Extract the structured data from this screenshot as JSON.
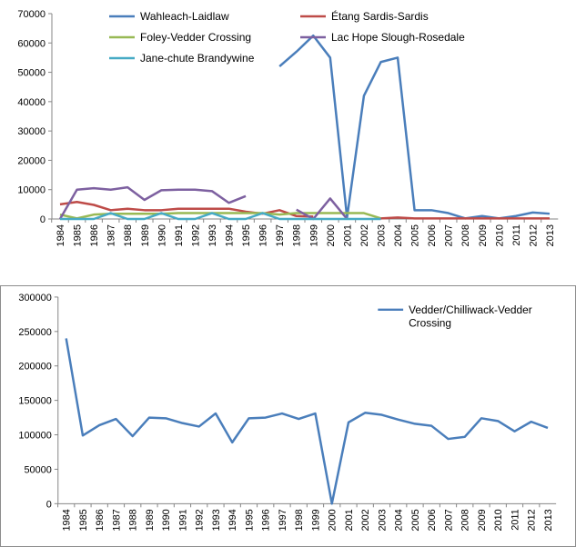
{
  "chart_data": [
    {
      "type": "line",
      "title": "",
      "xlabel": "",
      "ylabel": "",
      "ylim": [
        0,
        70000
      ],
      "yticks": [
        0,
        10000,
        20000,
        30000,
        40000,
        50000,
        60000,
        70000
      ],
      "legend_position": "top",
      "categories": [
        "1984",
        "1985",
        "1986",
        "1987",
        "1988",
        "1989",
        "1990",
        "1991",
        "1992",
        "1993",
        "1994",
        "1995",
        "1996",
        "1997",
        "1998",
        "1999",
        "2000",
        "2001",
        "2002",
        "2003",
        "2004",
        "2005",
        "2006",
        "2007",
        "2008",
        "2009",
        "2010",
        "2011",
        "2012",
        "2013"
      ],
      "series": [
        {
          "name": "Wahleach-Laidlaw",
          "color": "#4a7ebb",
          "values": [
            null,
            null,
            null,
            null,
            null,
            null,
            null,
            null,
            null,
            null,
            null,
            null,
            null,
            52000,
            57000,
            62500,
            55000,
            500,
            42000,
            53500,
            55000,
            3000,
            3000,
            2000,
            200,
            1000,
            200,
            1000,
            2200,
            1800
          ]
        },
        {
          "name": "Étang Sardis-Sardis",
          "color": "#be4b48",
          "values": [
            5000,
            5800,
            4800,
            3000,
            3500,
            3000,
            3000,
            3500,
            3500,
            3500,
            3500,
            2500,
            1800,
            3000,
            1000,
            800,
            null,
            null,
            null,
            200,
            500,
            200,
            200,
            200,
            200,
            200,
            200,
            200,
            200,
            200
          ]
        },
        {
          "name": "Foley-Vedder Crossing",
          "color": "#98b954",
          "values": [
            1500,
            200,
            1500,
            1800,
            1800,
            1800,
            1800,
            2000,
            2000,
            2000,
            2000,
            2000,
            2000,
            1500,
            2000,
            2000,
            2000,
            2000,
            2000,
            200,
            null,
            null,
            null,
            null,
            null,
            null,
            null,
            null,
            null,
            null
          ]
        },
        {
          "name": "Lac Hope Slough-Rosedale",
          "color": "#7d60a0",
          "values": [
            0,
            10000,
            10500,
            10000,
            10800,
            6500,
            9800,
            10000,
            10000,
            9500,
            5500,
            7800,
            null,
            null,
            3200,
            0,
            7000,
            0,
            null,
            null,
            null,
            null,
            null,
            null,
            null,
            null,
            null,
            null,
            null,
            null
          ]
        },
        {
          "name": "Jane-chute Brandywine",
          "color": "#46aac5",
          "values": [
            0,
            0,
            0,
            2000,
            0,
            0,
            2000,
            0,
            0,
            2000,
            0,
            0,
            2000,
            0,
            0,
            0,
            0,
            0,
            0,
            0,
            null,
            null,
            null,
            null,
            null,
            null,
            null,
            null,
            null,
            null
          ]
        }
      ]
    },
    {
      "type": "line",
      "title": "",
      "xlabel": "",
      "ylabel": "",
      "ylim": [
        0,
        300000
      ],
      "yticks": [
        0,
        50000,
        100000,
        150000,
        200000,
        250000,
        300000
      ],
      "legend_position": "top-right",
      "categories": [
        "1984",
        "1985",
        "1986",
        "1987",
        "1988",
        "1989",
        "1990",
        "1991",
        "1992",
        "1993",
        "1994",
        "1995",
        "1996",
        "1997",
        "1998",
        "1999",
        "2000",
        "2001",
        "2002",
        "2003",
        "2004",
        "2005",
        "2006",
        "2007",
        "2008",
        "2009",
        "2010",
        "2011",
        "2012",
        "2013"
      ],
      "series": [
        {
          "name": "Vedder/Chilliwack-Vedder Crossing",
          "color": "#4a7ebb",
          "values": [
            240000,
            99000,
            114000,
            123000,
            98000,
            125000,
            124000,
            117000,
            112000,
            131000,
            89000,
            124000,
            125000,
            131000,
            123000,
            131000,
            0,
            118000,
            132000,
            129000,
            122000,
            116000,
            113000,
            94000,
            97000,
            124000,
            120000,
            105000,
            119000,
            110000
          ]
        }
      ]
    }
  ]
}
